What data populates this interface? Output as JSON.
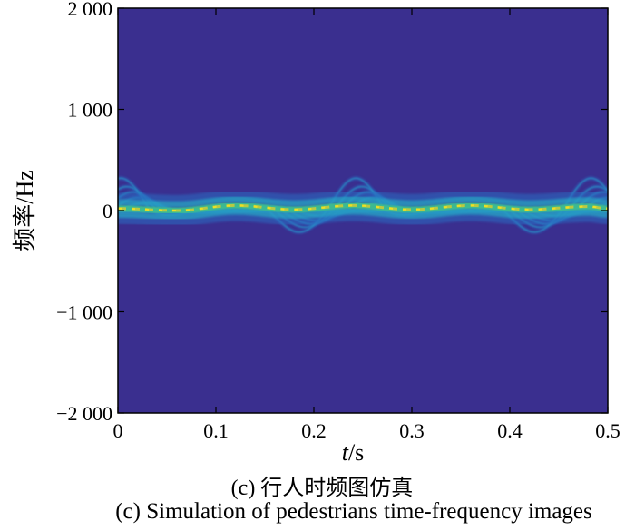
{
  "chart_data": {
    "type": "heatmap",
    "title": "",
    "xlabel_italic": "t",
    "xlabel_unit": "/s",
    "ylabel": "频率/Hz",
    "xlim": [
      0,
      0.5
    ],
    "ylim": [
      -2000,
      2000
    ],
    "x_ticks": [
      0,
      0.1,
      0.2,
      0.3,
      0.4,
      0.5
    ],
    "x_tick_labels": [
      "0",
      "0.1",
      "0.2",
      "0.3",
      "0.4",
      "0.5"
    ],
    "y_ticks": [
      2000,
      1000,
      0,
      -1000,
      -2000
    ],
    "y_tick_labels": [
      "2 000",
      "1 000",
      "0",
      "−1 000",
      "−2 000"
    ],
    "grid": false,
    "background_color": "#3a2f8f",
    "colormap": [
      "#3a2f8f",
      "#2c6cc2",
      "#27a2c4",
      "#3cc090",
      "#c5cb3b",
      "#f5e51e"
    ],
    "gait_period_s": 0.24,
    "center_line": {
      "peak_hz": 50,
      "points": [
        [
          0,
          20
        ],
        [
          0.06,
          0
        ],
        [
          0.12,
          50
        ],
        [
          0.18,
          10
        ],
        [
          0.24,
          50
        ],
        [
          0.3,
          10
        ],
        [
          0.36,
          50
        ],
        [
          0.42,
          10
        ],
        [
          0.48,
          40
        ],
        [
          0.5,
          20
        ]
      ]
    },
    "limb_envelopes_hz": [
      80,
      140,
      190,
      240,
      320
    ]
  },
  "caption": {
    "zh": "(c) 行人时频图仿真",
    "en": "(c) Simulation of pedestrians time-frequency images"
  }
}
